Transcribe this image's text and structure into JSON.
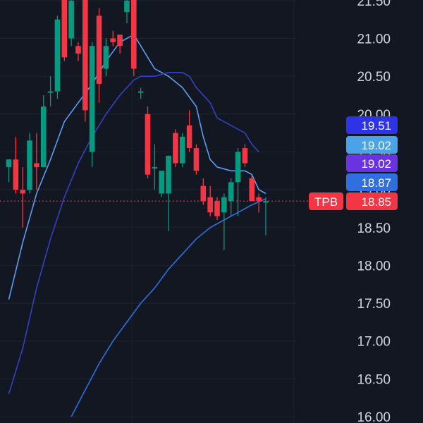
{
  "chart_data": {
    "type": "candlestick",
    "ticker": "TPB",
    "last_price": "18.85",
    "ylim": [
      16.0,
      21.5
    ],
    "y_ticks": [
      "16.00",
      "16.50",
      "17.00",
      "17.50",
      "18.00",
      "18.50",
      "19.00",
      "19.50",
      "20.00",
      "20.50",
      "21.00",
      "21.50"
    ],
    "candles": [
      {
        "o": 19.3,
        "h": 19.4,
        "l": 19.1,
        "c": 19.4
      },
      {
        "o": 19.4,
        "h": 19.7,
        "l": 18.95,
        "c": 19.0
      },
      {
        "o": 19.0,
        "h": 19.3,
        "l": 18.5,
        "c": 18.95
      },
      {
        "o": 19.0,
        "h": 19.75,
        "l": 18.95,
        "c": 19.65
      },
      {
        "o": 19.35,
        "h": 19.75,
        "l": 19.0,
        "c": 19.3
      },
      {
        "o": 19.3,
        "h": 20.25,
        "l": 19.3,
        "c": 20.1
      },
      {
        "o": 20.3,
        "h": 20.5,
        "l": 20.1,
        "c": 20.3
      },
      {
        "o": 20.3,
        "h": 21.3,
        "l": 20.2,
        "c": 21.25
      },
      {
        "o": 21.6,
        "h": 21.7,
        "l": 20.7,
        "c": 20.75
      },
      {
        "o": 21.0,
        "h": 21.6,
        "l": 20.9,
        "c": 21.5
      },
      {
        "o": 20.9,
        "h": 20.95,
        "l": 20.7,
        "c": 20.8
      },
      {
        "o": 21.6,
        "h": 21.7,
        "l": 19.9,
        "c": 20.05
      },
      {
        "o": 19.5,
        "h": 20.95,
        "l": 19.3,
        "c": 20.9
      },
      {
        "o": 21.3,
        "h": 21.4,
        "l": 20.15,
        "c": 20.4
      },
      {
        "o": 20.6,
        "h": 21.0,
        "l": 20.5,
        "c": 20.9
      },
      {
        "o": 21.0,
        "h": 21.1,
        "l": 20.9,
        "c": 20.95
      },
      {
        "o": 21.05,
        "h": 21.05,
        "l": 20.8,
        "c": 20.9
      },
      {
        "o": 21.35,
        "h": 21.6,
        "l": 21.2,
        "c": 21.5
      },
      {
        "o": 21.6,
        "h": 21.7,
        "l": 20.5,
        "c": 20.6
      },
      {
        "o": 20.3,
        "h": 20.35,
        "l": 20.2,
        "c": 20.3
      },
      {
        "o": 20.0,
        "h": 20.1,
        "l": 19.15,
        "c": 19.2
      },
      {
        "o": 19.3,
        "h": 19.6,
        "l": 19.0,
        "c": 19.3
      },
      {
        "o": 18.95,
        "h": 19.25,
        "l": 18.9,
        "c": 19.25
      },
      {
        "o": 18.95,
        "h": 19.45,
        "l": 18.45,
        "c": 19.45
      },
      {
        "o": 19.75,
        "h": 19.8,
        "l": 19.3,
        "c": 19.35
      },
      {
        "o": 19.35,
        "h": 19.75,
        "l": 19.3,
        "c": 19.7
      },
      {
        "o": 19.85,
        "h": 20.05,
        "l": 19.5,
        "c": 19.55
      },
      {
        "o": 19.55,
        "h": 19.6,
        "l": 19.2,
        "c": 19.25
      },
      {
        "o": 19.05,
        "h": 19.15,
        "l": 18.8,
        "c": 18.85
      },
      {
        "o": 18.9,
        "h": 19.05,
        "l": 18.65,
        "c": 18.7
      },
      {
        "o": 18.85,
        "h": 18.9,
        "l": 18.6,
        "c": 18.65
      },
      {
        "o": 18.7,
        "h": 18.95,
        "l": 18.2,
        "c": 18.9
      },
      {
        "o": 18.85,
        "h": 19.15,
        "l": 18.65,
        "c": 19.1
      },
      {
        "o": 19.1,
        "h": 19.55,
        "l": 18.65,
        "c": 19.5
      },
      {
        "o": 19.55,
        "h": 19.6,
        "l": 19.3,
        "c": 19.35
      },
      {
        "o": 19.15,
        "h": 19.2,
        "l": 18.85,
        "c": 18.85
      },
      {
        "o": 18.9,
        "h": 18.95,
        "l": 18.7,
        "c": 18.85
      },
      {
        "o": 18.85,
        "h": 18.9,
        "l": 18.4,
        "c": 18.85
      }
    ],
    "ma_lines": [
      {
        "color": "#5b9cf6",
        "points": [
          {
            "i": 0,
            "v": 17.55
          },
          {
            "i": 2,
            "v": 18.3
          },
          {
            "i": 4,
            "v": 18.95
          },
          {
            "i": 6,
            "v": 19.4
          },
          {
            "i": 8,
            "v": 19.9
          },
          {
            "i": 10,
            "v": 20.15
          },
          {
            "i": 12,
            "v": 20.4
          },
          {
            "i": 14,
            "v": 20.7
          },
          {
            "i": 16,
            "v": 20.95
          },
          {
            "i": 18,
            "v": 21.05
          },
          {
            "i": 19,
            "v": 20.9
          },
          {
            "i": 21,
            "v": 20.6
          },
          {
            "i": 23,
            "v": 20.5
          },
          {
            "i": 25,
            "v": 20.35
          },
          {
            "i": 27,
            "v": 20.1
          },
          {
            "i": 28,
            "v": 19.7
          },
          {
            "i": 29,
            "v": 19.4
          },
          {
            "i": 30,
            "v": 19.3
          },
          {
            "i": 32,
            "v": 19.25
          },
          {
            "i": 34,
            "v": 19.25
          },
          {
            "i": 35,
            "v": 19.2
          },
          {
            "i": 36,
            "v": 19.0
          },
          {
            "i": 37,
            "v": 18.95
          }
        ]
      },
      {
        "color": "#3342c4",
        "points": [
          {
            "i": 0,
            "v": 16.3
          },
          {
            "i": 2,
            "v": 16.9
          },
          {
            "i": 4,
            "v": 17.7
          },
          {
            "i": 6,
            "v": 18.35
          },
          {
            "i": 8,
            "v": 18.9
          },
          {
            "i": 10,
            "v": 19.35
          },
          {
            "i": 12,
            "v": 19.7
          },
          {
            "i": 14,
            "v": 20.0
          },
          {
            "i": 16,
            "v": 20.25
          },
          {
            "i": 18,
            "v": 20.45
          },
          {
            "i": 19,
            "v": 20.5
          },
          {
            "i": 21,
            "v": 20.5
          },
          {
            "i": 23,
            "v": 20.55
          },
          {
            "i": 25,
            "v": 20.55
          },
          {
            "i": 26,
            "v": 20.5
          },
          {
            "i": 27,
            "v": 20.35
          },
          {
            "i": 29,
            "v": 20.15
          },
          {
            "i": 30,
            "v": 19.95
          },
          {
            "i": 32,
            "v": 19.85
          },
          {
            "i": 34,
            "v": 19.75
          },
          {
            "i": 35,
            "v": 19.6
          },
          {
            "i": 36,
            "v": 19.5
          }
        ]
      },
      {
        "color": "#2f6fe0",
        "points": [
          {
            "i": 9,
            "v": 16.0
          },
          {
            "i": 11,
            "v": 16.35
          },
          {
            "i": 13,
            "v": 16.7
          },
          {
            "i": 15,
            "v": 17.0
          },
          {
            "i": 17,
            "v": 17.25
          },
          {
            "i": 19,
            "v": 17.5
          },
          {
            "i": 21,
            "v": 17.7
          },
          {
            "i": 23,
            "v": 17.95
          },
          {
            "i": 25,
            "v": 18.15
          },
          {
            "i": 27,
            "v": 18.35
          },
          {
            "i": 29,
            "v": 18.5
          },
          {
            "i": 31,
            "v": 18.6
          },
          {
            "i": 33,
            "v": 18.7
          },
          {
            "i": 35,
            "v": 18.8
          },
          {
            "i": 37,
            "v": 18.88
          }
        ]
      }
    ],
    "price_labels": [
      {
        "text": "19.51",
        "value": 19.51,
        "color": "#2d34e6"
      },
      {
        "text": "19.02",
        "value": 19.02,
        "color": "#4aa3e8"
      },
      {
        "text": "19.02",
        "value": 19.02,
        "color": "#6a33e2"
      },
      {
        "text": "18.87",
        "value": 18.87,
        "color": "#2f6fe0"
      },
      {
        "text": "18.85",
        "value": 18.85,
        "color": "#f23645"
      }
    ],
    "colors": {
      "background": "#131722",
      "grid": "#1f2331",
      "up": "#089981",
      "down": "#f23645",
      "axis_text": "#d1d4dc"
    }
  }
}
